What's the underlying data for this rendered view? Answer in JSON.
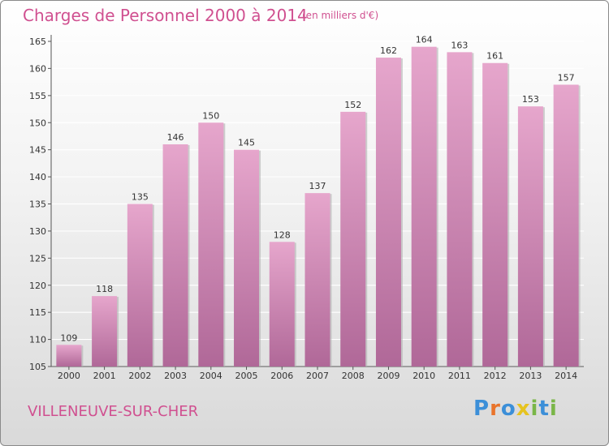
{
  "chart_data": {
    "type": "bar",
    "title": "Charges de Personnel 2000 à 2014",
    "unit_label": "(en milliers d'€)",
    "categories": [
      "2000",
      "2001",
      "2002",
      "2003",
      "2004",
      "2005",
      "2006",
      "2007",
      "2008",
      "2009",
      "2010",
      "2011",
      "2012",
      "2013",
      "2014"
    ],
    "values": [
      109,
      118,
      135,
      146,
      150,
      145,
      128,
      137,
      152,
      162,
      164,
      163,
      161,
      153,
      157
    ],
    "ylim": [
      105,
      165
    ],
    "yticks": [
      105,
      110,
      115,
      120,
      125,
      130,
      135,
      140,
      145,
      150,
      155,
      160,
      165
    ],
    "grid": true,
    "bar_color_top": "#e6a6cc",
    "bar_color_bottom": "#b06898"
  },
  "commune": "VILLENEUVE-SUR-CHER",
  "logo": {
    "text": "Proxiti",
    "letters": [
      "P",
      "r",
      "o",
      "x",
      "i",
      "t",
      "i"
    ],
    "letter_colors": [
      "#3c8fd8",
      "#e9742b",
      "#3c8fd8",
      "#e6c31f",
      "#7ab648",
      "#3c8fd8",
      "#7ab648"
    ]
  },
  "colors": {
    "title": "#d05090"
  }
}
